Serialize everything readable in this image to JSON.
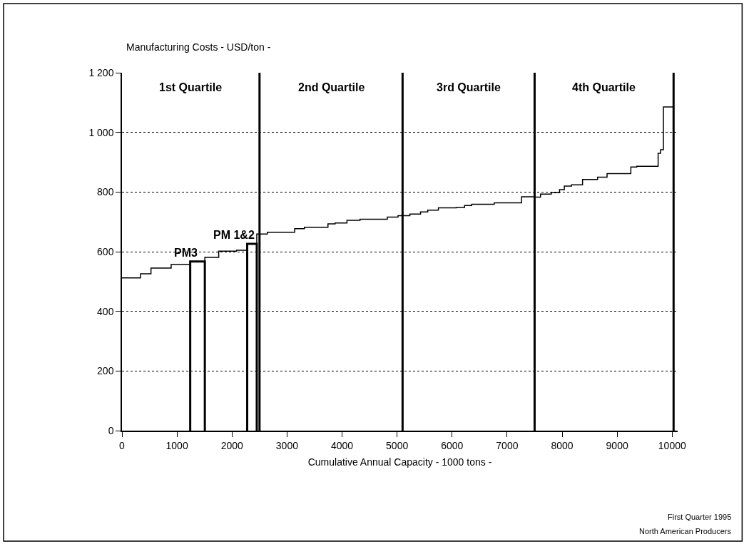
{
  "chart_data": {
    "type": "step",
    "xlabel": "Cumulative Annual Capacity - 1000 tons -",
    "ylabel": "Manufacturing Costs - USD/ton -",
    "xlim": [
      0,
      10100
    ],
    "xticks": [
      0,
      1000,
      2000,
      3000,
      4000,
      5000,
      6000,
      7000,
      8000,
      9000,
      10000
    ],
    "ylim": [
      0,
      1200
    ],
    "yticks": [
      0,
      {
        "value": 200,
        "label": "200"
      },
      400,
      600,
      800,
      {
        "value": 1000,
        "label": "1 000"
      },
      {
        "value": 1200,
        "label": "1 200"
      }
    ],
    "grid": "y",
    "series": [
      {
        "color": "#000000",
        "x": [
          0,
          337,
          527,
          894,
          1240,
          1506,
          1758,
          2082,
          2276,
          2450,
          2642,
          3139,
          3316,
          3744,
          3873,
          4089,
          4326,
          4823,
          5017,
          5233,
          5427,
          5557,
          5751,
          6075,
          6227,
          6356,
          6766,
          7263,
          7500,
          7607,
          7802,
          7953,
          8040,
          8170,
          8371,
          8644,
          8817,
          9249,
          9356,
          9745,
          9789,
          9841,
          10026
        ],
        "values": [
          512,
          526,
          545,
          557,
          567,
          581,
          602,
          605,
          626,
          659,
          665,
          677,
          682,
          693,
          696,
          705,
          709,
          716,
          721,
          726,
          733,
          739,
          747,
          748,
          755,
          759,
          764,
          784,
          783,
          793,
          798,
          808,
          820,
          824,
          842,
          850,
          862,
          884,
          886,
          930,
          942,
          1085,
          1085
        ]
      },
      {
        "type": "line",
        "name": "PM3",
        "color": "#000000",
        "x": [
          1240,
          1240,
          1506,
          1506
        ],
        "values": [
          0,
          567,
          567,
          0
        ]
      },
      {
        "type": "line",
        "name": "PM 1&2",
        "color": "#000000",
        "x": [
          2276,
          2276,
          2450,
          2450
        ],
        "values": [
          0,
          626,
          626,
          0
        ]
      }
    ],
    "ref_lines": [
      {
        "axis": "x",
        "value": 2500
      },
      {
        "axis": "x",
        "value": 5100
      },
      {
        "axis": "x",
        "value": 7500
      },
      {
        "axis": "x",
        "value": 10026
      }
    ],
    "annotations": [
      "1st Quartile",
      "2nd Quartile",
      "3rd Quartile",
      "4th Quartile",
      "First Quarter 1995",
      "North American Producers"
    ]
  }
}
